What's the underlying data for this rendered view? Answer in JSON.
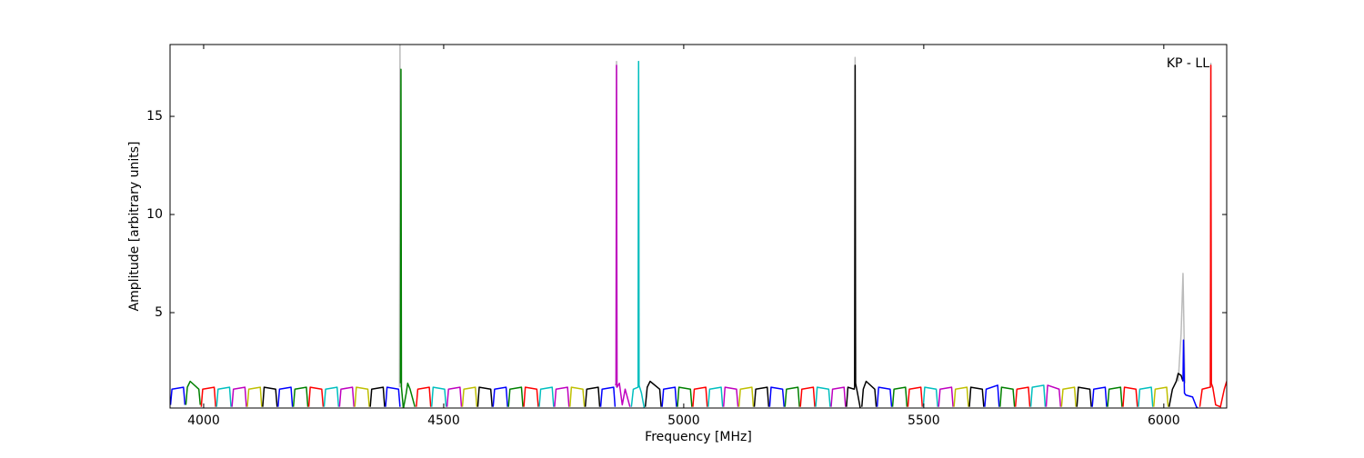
{
  "chart_data": {
    "type": "line",
    "annotation": "KP - LL",
    "xlabel": "Frequency [MHz]",
    "ylabel": "Amplitude [arbitrary units]",
    "xlim": [
      3930,
      6131
    ],
    "ylim": [
      0.14,
      18.66
    ],
    "xticks": [
      4000,
      4500,
      5000,
      5500,
      6000
    ],
    "yticks": [
      5,
      10,
      15
    ],
    "series": [
      {
        "color": "#bbbbbb",
        "x": [
          4408,
          4409,
          4410,
          4420,
          4859,
          4860,
          4861,
          4880,
          4905,
          4906,
          4907,
          4920,
          5356,
          5357,
          5358,
          5370,
          6030,
          6036,
          6040,
          6044,
          6050,
          6097,
          6098,
          6099
        ],
        "values": [
          1.2,
          18.66,
          1.2,
          null,
          1.2,
          17.8,
          1.2,
          null,
          1.2,
          17.8,
          1.2,
          null,
          1.2,
          18.0,
          1.2,
          null,
          1.5,
          3.9,
          7.0,
          1.4,
          null,
          1.2,
          17.7,
          1.2
        ]
      },
      {
        "color": "#0000ff",
        "x": [
          3931,
          3934,
          3958,
          3961
        ],
        "values": [
          0.3,
          1.1,
          1.2,
          0.3
        ]
      },
      {
        "color": "#008000",
        "x": [
          3963,
          3966,
          3972,
          3990,
          3993
        ],
        "values": [
          0.3,
          1.2,
          1.5,
          1.1,
          0.3
        ]
      },
      {
        "color": "#ff0000",
        "x": [
          3995,
          3998,
          4022,
          4025
        ],
        "values": [
          0.2,
          1.1,
          1.2,
          0.2
        ]
      },
      {
        "color": "#00bfbf",
        "x": [
          4027,
          4030,
          4054,
          4057
        ],
        "values": [
          0.2,
          1.1,
          1.2,
          0.2
        ]
      },
      {
        "color": "#bf00bf",
        "x": [
          4059,
          4062,
          4086,
          4089
        ],
        "values": [
          0.2,
          1.1,
          1.2,
          0.2
        ]
      },
      {
        "color": "#bfbf00",
        "x": [
          4091,
          4094,
          4118,
          4121
        ],
        "values": [
          0.2,
          1.1,
          1.2,
          0.2
        ]
      },
      {
        "color": "#000000",
        "x": [
          4123,
          4126,
          4150,
          4153
        ],
        "values": [
          0.2,
          1.2,
          1.1,
          0.2
        ]
      },
      {
        "color": "#0000ff",
        "x": [
          4155,
          4158,
          4182,
          4185
        ],
        "values": [
          0.2,
          1.1,
          1.2,
          0.2
        ]
      },
      {
        "color": "#008000",
        "x": [
          4187,
          4190,
          4214,
          4217
        ],
        "values": [
          0.2,
          1.1,
          1.2,
          0.2
        ]
      },
      {
        "color": "#ff0000",
        "x": [
          4219,
          4222,
          4246,
          4249
        ],
        "values": [
          0.2,
          1.2,
          1.1,
          0.2
        ]
      },
      {
        "color": "#00bfbf",
        "x": [
          4251,
          4254,
          4278,
          4281
        ],
        "values": [
          0.2,
          1.1,
          1.2,
          0.2
        ]
      },
      {
        "color": "#bf00bf",
        "x": [
          4283,
          4286,
          4310,
          4313
        ],
        "values": [
          0.2,
          1.1,
          1.2,
          0.2
        ]
      },
      {
        "color": "#bfbf00",
        "x": [
          4315,
          4318,
          4342,
          4345
        ],
        "values": [
          0.2,
          1.2,
          1.1,
          0.2
        ]
      },
      {
        "color": "#000000",
        "x": [
          4347,
          4350,
          4374,
          4377
        ],
        "values": [
          0.2,
          1.1,
          1.2,
          0.2
        ]
      },
      {
        "color": "#0000ff",
        "x": [
          4379,
          4382,
          4406,
          4409
        ],
        "values": [
          0.2,
          1.2,
          1.1,
          0.2
        ]
      },
      {
        "color": "#008000",
        "x": [
          4410,
          4411,
          4412,
          4416,
          4422,
          4425,
          4430,
          4440
        ],
        "values": [
          1.4,
          17.4,
          1.2,
          0.1,
          0.9,
          1.4,
          1.1,
          0.2
        ]
      },
      {
        "color": "#ff0000",
        "x": [
          4443,
          4446,
          4470,
          4473
        ],
        "values": [
          0.2,
          1.1,
          1.2,
          0.2
        ]
      },
      {
        "color": "#00bfbf",
        "x": [
          4475,
          4478,
          4502,
          4505
        ],
        "values": [
          0.2,
          1.2,
          1.1,
          0.2
        ]
      },
      {
        "color": "#bf00bf",
        "x": [
          4507,
          4510,
          4534,
          4537
        ],
        "values": [
          0.2,
          1.1,
          1.2,
          0.2
        ]
      },
      {
        "color": "#bfbf00",
        "x": [
          4539,
          4542,
          4566,
          4569
        ],
        "values": [
          0.2,
          1.1,
          1.2,
          0.2
        ]
      },
      {
        "color": "#000000",
        "x": [
          4571,
          4574,
          4598,
          4601
        ],
        "values": [
          0.2,
          1.2,
          1.1,
          0.2
        ]
      },
      {
        "color": "#0000ff",
        "x": [
          4603,
          4606,
          4630,
          4633
        ],
        "values": [
          0.2,
          1.1,
          1.2,
          0.2
        ]
      },
      {
        "color": "#008000",
        "x": [
          4635,
          4638,
          4662,
          4665
        ],
        "values": [
          0.2,
          1.1,
          1.2,
          0.2
        ]
      },
      {
        "color": "#ff0000",
        "x": [
          4667,
          4670,
          4694,
          4697
        ],
        "values": [
          0.2,
          1.2,
          1.1,
          0.2
        ]
      },
      {
        "color": "#00bfbf",
        "x": [
          4699,
          4702,
          4726,
          4729
        ],
        "values": [
          0.2,
          1.1,
          1.2,
          0.2
        ]
      },
      {
        "color": "#bf00bf",
        "x": [
          4731,
          4734,
          4758,
          4761
        ],
        "values": [
          0.2,
          1.1,
          1.2,
          0.2
        ]
      },
      {
        "color": "#bfbf00",
        "x": [
          4763,
          4766,
          4790,
          4793
        ],
        "values": [
          0.2,
          1.2,
          1.1,
          0.2
        ]
      },
      {
        "color": "#000000",
        "x": [
          4795,
          4798,
          4822,
          4825
        ],
        "values": [
          0.2,
          1.1,
          1.2,
          0.2
        ]
      },
      {
        "color": "#0000ff",
        "x": [
          4827,
          4830,
          4854,
          4857
        ],
        "values": [
          0.2,
          1.1,
          1.2,
          0.2
        ]
      },
      {
        "color": "#bf00bf",
        "x": [
          4858,
          4859,
          4860,
          4861,
          4866,
          4872,
          4878,
          4888
        ],
        "values": [
          1.3,
          1.4,
          17.6,
          1.2,
          1.4,
          0.3,
          1.1,
          0.2
        ]
      },
      {
        "color": "#00bfbf",
        "x": [
          4891,
          4895,
          4905,
          4906,
          4907,
          4912,
          4918
        ],
        "values": [
          0.2,
          1.1,
          1.2,
          17.8,
          1.3,
          0.9,
          0.1
        ]
      },
      {
        "color": "#000000",
        "x": [
          4920,
          4924,
          4930,
          4950,
          4953
        ],
        "values": [
          0.2,
          1.2,
          1.5,
          1.1,
          0.2
        ]
      },
      {
        "color": "#0000ff",
        "x": [
          4955,
          4958,
          4982,
          4985
        ],
        "values": [
          0.2,
          1.1,
          1.2,
          0.2
        ]
      },
      {
        "color": "#008000",
        "x": [
          4987,
          4990,
          5014,
          5017
        ],
        "values": [
          0.2,
          1.2,
          1.1,
          0.2
        ]
      },
      {
        "color": "#ff0000",
        "x": [
          5019,
          5022,
          5046,
          5049
        ],
        "values": [
          0.2,
          1.1,
          1.2,
          0.2
        ]
      },
      {
        "color": "#00bfbf",
        "x": [
          5051,
          5054,
          5078,
          5081
        ],
        "values": [
          0.2,
          1.1,
          1.2,
          0.2
        ]
      },
      {
        "color": "#bf00bf",
        "x": [
          5083,
          5086,
          5110,
          5113
        ],
        "values": [
          0.2,
          1.2,
          1.1,
          0.2
        ]
      },
      {
        "color": "#bfbf00",
        "x": [
          5115,
          5118,
          5142,
          5145
        ],
        "values": [
          0.2,
          1.1,
          1.2,
          0.2
        ]
      },
      {
        "color": "#000000",
        "x": [
          5147,
          5150,
          5174,
          5177
        ],
        "values": [
          0.2,
          1.1,
          1.2,
          0.2
        ]
      },
      {
        "color": "#0000ff",
        "x": [
          5179,
          5182,
          5206,
          5209
        ],
        "values": [
          0.2,
          1.2,
          1.1,
          0.2
        ]
      },
      {
        "color": "#008000",
        "x": [
          5211,
          5214,
          5238,
          5241
        ],
        "values": [
          0.2,
          1.1,
          1.2,
          0.2
        ]
      },
      {
        "color": "#ff0000",
        "x": [
          5243,
          5246,
          5270,
          5273
        ],
        "values": [
          0.2,
          1.1,
          1.2,
          0.2
        ]
      },
      {
        "color": "#00bfbf",
        "x": [
          5275,
          5278,
          5302,
          5305
        ],
        "values": [
          0.2,
          1.2,
          1.1,
          0.2
        ]
      },
      {
        "color": "#bf00bf",
        "x": [
          5307,
          5310,
          5334,
          5337
        ],
        "values": [
          0.2,
          1.1,
          1.2,
          0.2
        ]
      },
      {
        "color": "#000000",
        "x": [
          5339,
          5342,
          5355,
          5356,
          5357,
          5358,
          5362,
          5368
        ],
        "values": [
          0.2,
          1.2,
          1.1,
          1.2,
          17.6,
          1.4,
          0.9,
          0.1
        ]
      },
      {
        "color": "#000000",
        "x": [
          5371,
          5374,
          5380,
          5398,
          5401
        ],
        "values": [
          0.2,
          1.1,
          1.5,
          1.1,
          0.2
        ]
      },
      {
        "color": "#0000ff",
        "x": [
          5403,
          5406,
          5430,
          5433
        ],
        "values": [
          0.2,
          1.2,
          1.1,
          0.2
        ]
      },
      {
        "color": "#008000",
        "x": [
          5435,
          5438,
          5462,
          5465
        ],
        "values": [
          0.2,
          1.1,
          1.2,
          0.2
        ]
      },
      {
        "color": "#ff0000",
        "x": [
          5467,
          5470,
          5494,
          5497
        ],
        "values": [
          0.2,
          1.1,
          1.2,
          0.2
        ]
      },
      {
        "color": "#00bfbf",
        "x": [
          5499,
          5502,
          5526,
          5529
        ],
        "values": [
          0.2,
          1.2,
          1.1,
          0.2
        ]
      },
      {
        "color": "#bf00bf",
        "x": [
          5531,
          5534,
          5558,
          5561
        ],
        "values": [
          0.2,
          1.1,
          1.2,
          0.2
        ]
      },
      {
        "color": "#bfbf00",
        "x": [
          5563,
          5566,
          5590,
          5593
        ],
        "values": [
          0.2,
          1.1,
          1.2,
          0.2
        ]
      },
      {
        "color": "#000000",
        "x": [
          5595,
          5598,
          5622,
          5625
        ],
        "values": [
          0.2,
          1.2,
          1.1,
          0.2
        ]
      },
      {
        "color": "#0000ff",
        "x": [
          5627,
          5630,
          5654,
          5657
        ],
        "values": [
          0.2,
          1.1,
          1.3,
          0.2
        ]
      },
      {
        "color": "#008000",
        "x": [
          5659,
          5662,
          5686,
          5689
        ],
        "values": [
          0.2,
          1.2,
          1.1,
          0.2
        ]
      },
      {
        "color": "#ff0000",
        "x": [
          5691,
          5694,
          5718,
          5721
        ],
        "values": [
          0.2,
          1.1,
          1.2,
          0.2
        ]
      },
      {
        "color": "#00bfbf",
        "x": [
          5723,
          5726,
          5750,
          5753
        ],
        "values": [
          0.2,
          1.2,
          1.3,
          0.2
        ]
      },
      {
        "color": "#bf00bf",
        "x": [
          5755,
          5758,
          5782,
          5785
        ],
        "values": [
          0.2,
          1.3,
          1.1,
          0.2
        ]
      },
      {
        "color": "#bfbf00",
        "x": [
          5787,
          5790,
          5814,
          5817
        ],
        "values": [
          0.2,
          1.1,
          1.2,
          0.2
        ]
      },
      {
        "color": "#000000",
        "x": [
          5819,
          5822,
          5846,
          5849
        ],
        "values": [
          0.2,
          1.2,
          1.1,
          0.2
        ]
      },
      {
        "color": "#0000ff",
        "x": [
          5851,
          5854,
          5878,
          5881
        ],
        "values": [
          0.2,
          1.1,
          1.2,
          0.2
        ]
      },
      {
        "color": "#008000",
        "x": [
          5883,
          5886,
          5910,
          5913
        ],
        "values": [
          0.2,
          1.1,
          1.2,
          0.2
        ]
      },
      {
        "color": "#ff0000",
        "x": [
          5915,
          5918,
          5942,
          5945
        ],
        "values": [
          0.2,
          1.2,
          1.1,
          0.2
        ]
      },
      {
        "color": "#00bfbf",
        "x": [
          5947,
          5950,
          5974,
          5977
        ],
        "values": [
          0.2,
          1.1,
          1.2,
          0.2
        ]
      },
      {
        "color": "#bfbf00",
        "x": [
          5979,
          5982,
          6006,
          6009
        ],
        "values": [
          0.2,
          1.1,
          1.2,
          0.2
        ]
      },
      {
        "color": "#000000",
        "x": [
          6011,
          6018,
          6026,
          6030,
          6036,
          6040
        ],
        "values": [
          0.2,
          1.1,
          1.5,
          1.9,
          1.8,
          1.5
        ]
      },
      {
        "color": "#0000ff",
        "x": [
          6040,
          6041,
          6043,
          6046,
          6060,
          6068,
          6072
        ],
        "values": [
          1.5,
          3.6,
          0.9,
          0.8,
          0.7,
          0.2,
          0.1
        ]
      },
      {
        "color": "#ff0000",
        "x": [
          6075,
          6080,
          6096,
          6097,
          6098,
          6099,
          6102,
          6108,
          6118,
          6126,
          6131
        ],
        "values": [
          0.2,
          1.1,
          1.2,
          1.2,
          17.6,
          1.4,
          1.2,
          0.3,
          0.2,
          1.1,
          1.5
        ]
      }
    ]
  }
}
